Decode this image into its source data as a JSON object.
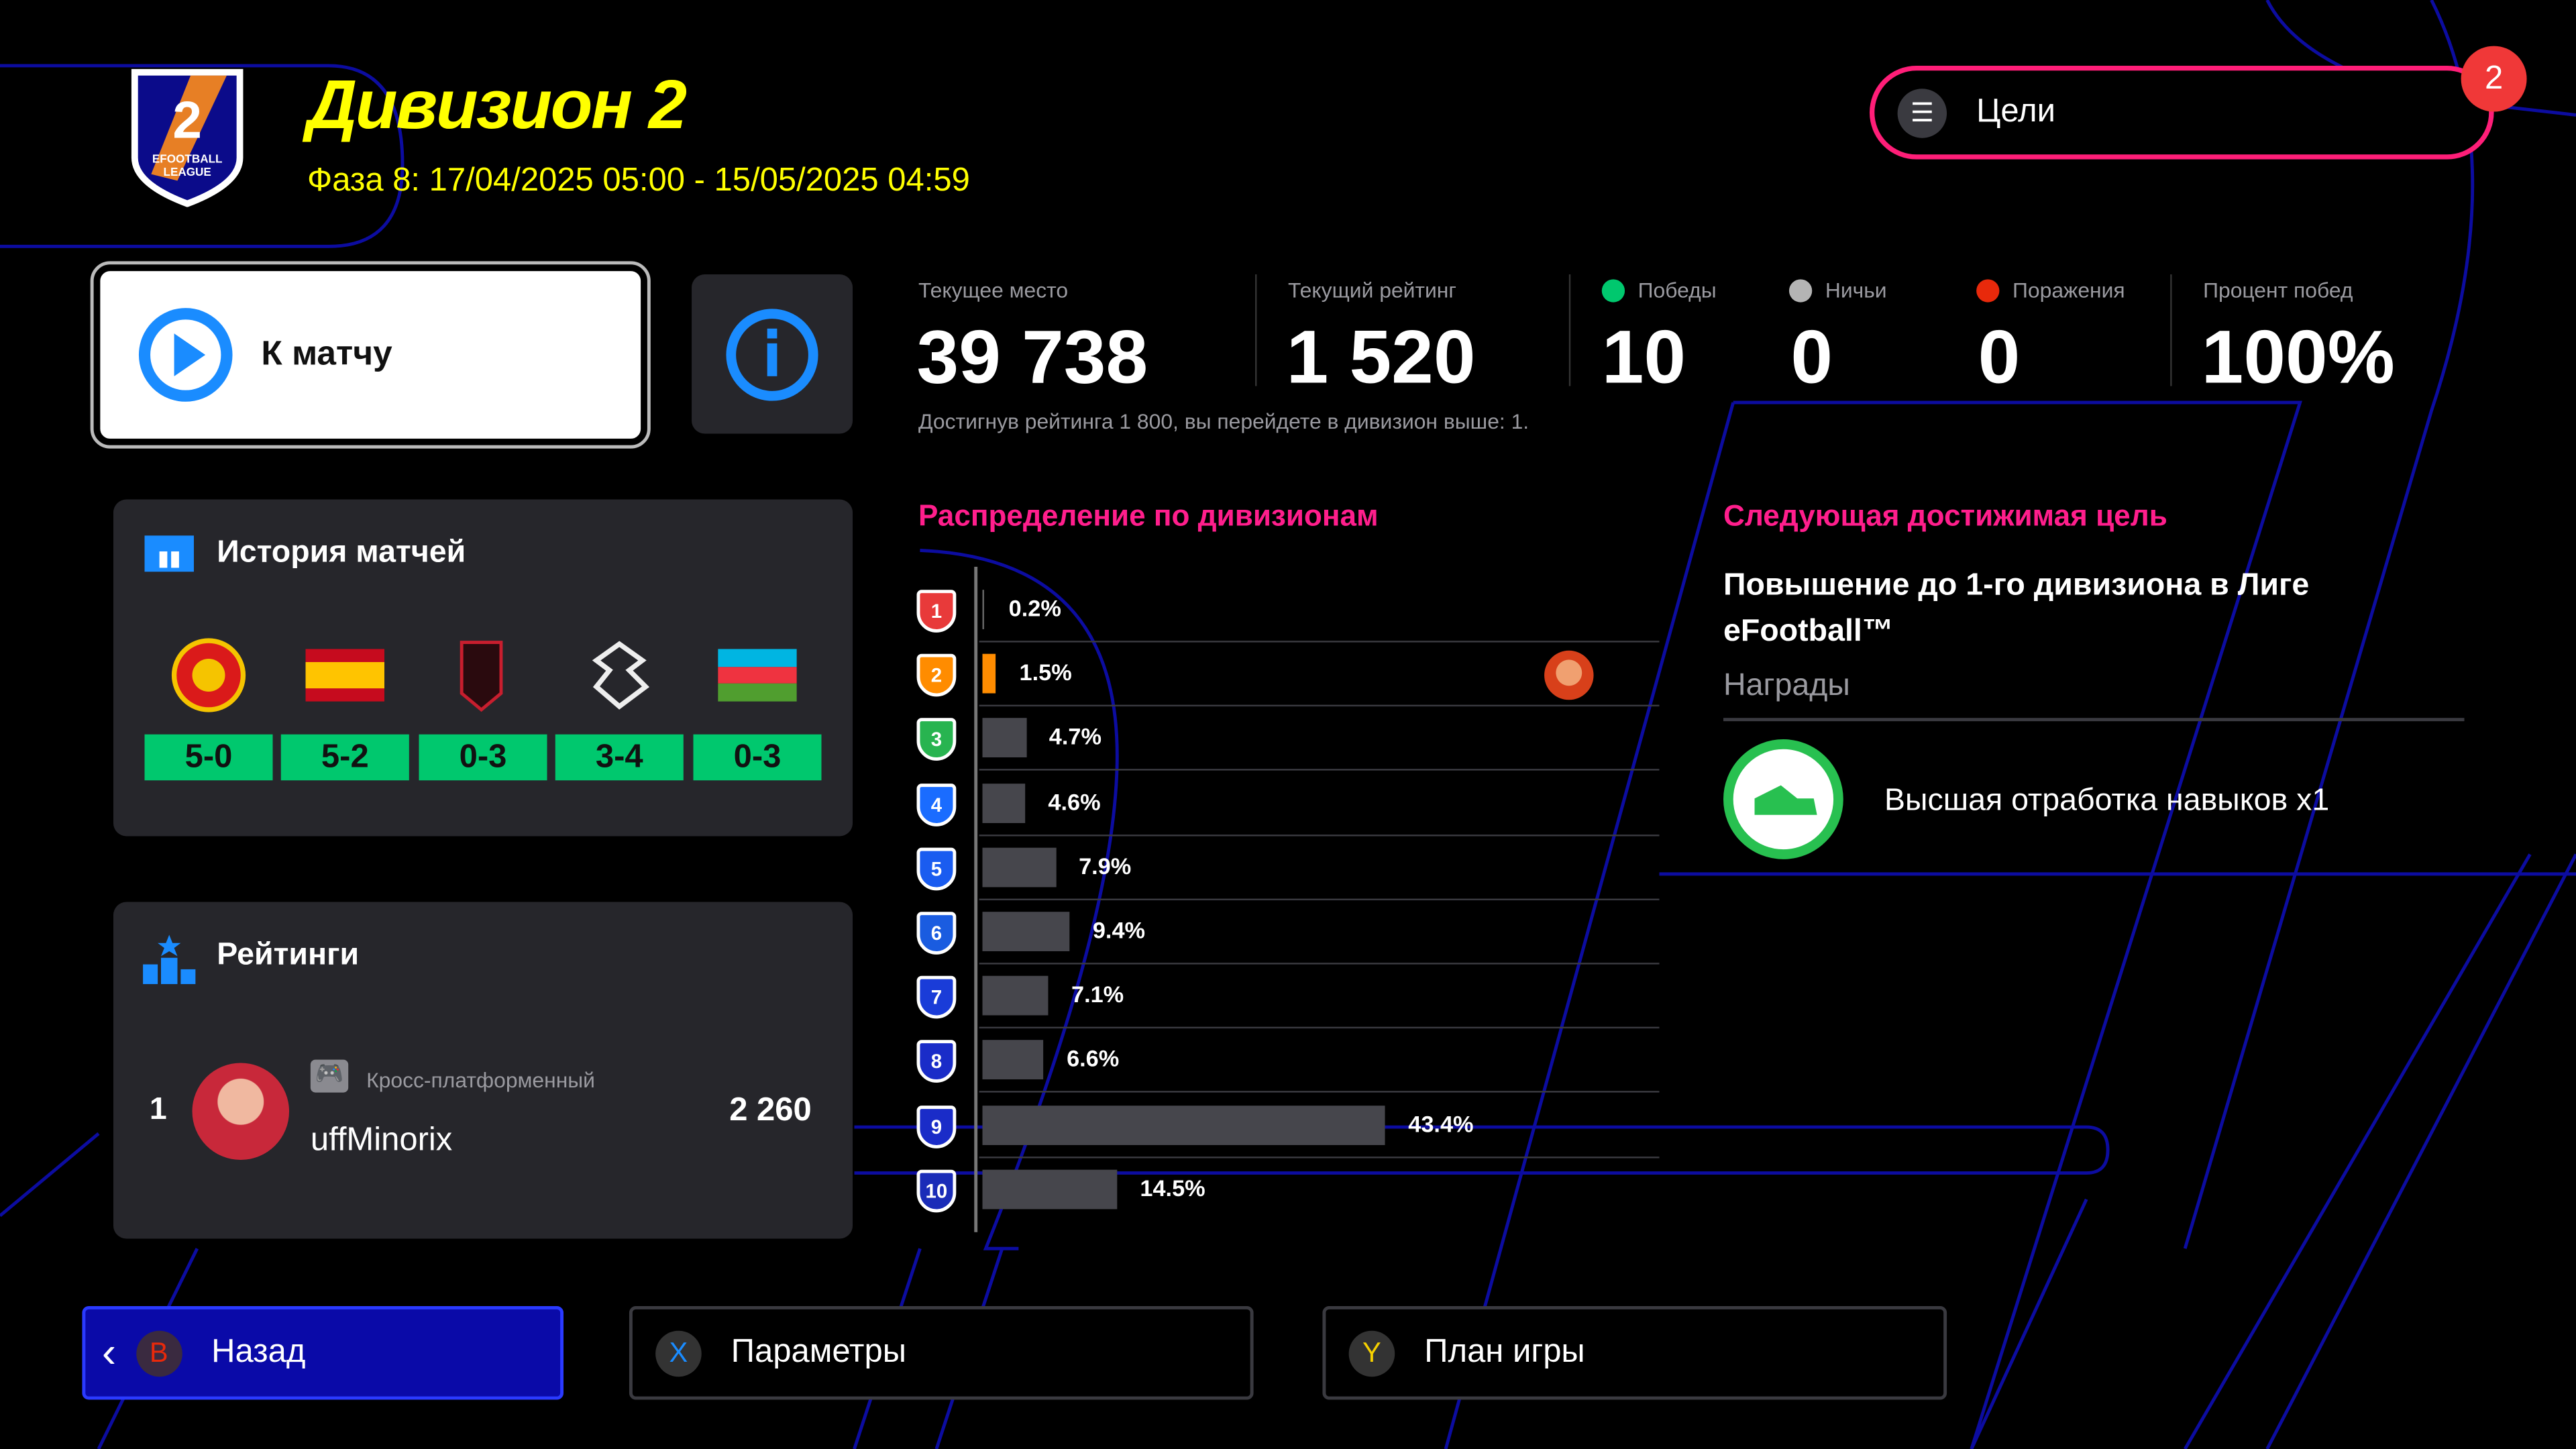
{
  "header": {
    "title": "Дивизион 2",
    "phase": "Фаза 8: 17/04/2025 05:00 - 15/05/2025 04:59",
    "logo_text": "2 EFOOTBALL LEAGUE"
  },
  "goals": {
    "label": "Цели",
    "badge": "2",
    "icon": "menu-icon"
  },
  "match_button": {
    "label": "К матчу",
    "icon": "play-icon"
  },
  "info_button": {
    "icon": "info-icon"
  },
  "stats": {
    "place": {
      "label": "Текущее место",
      "value": "39 738"
    },
    "rating": {
      "label": "Текущий рейтинг",
      "value": "1 520"
    },
    "wins": {
      "label": "Победы",
      "value": "10",
      "color": "#00c86e"
    },
    "draws": {
      "label": "Ничьи",
      "value": "0",
      "color": "#b4b4b4"
    },
    "losses": {
      "label": "Поражения",
      "value": "0",
      "color": "#e8290b"
    },
    "winrate": {
      "label": "Процент побед",
      "value": "100%"
    },
    "hint": "Достигнув рейтинга 1 800, вы перейдете в дивизион выше: 1."
  },
  "history": {
    "title": "История матчей",
    "matches": [
      {
        "opponent": "Manchester United",
        "score": "5-0"
      },
      {
        "opponent": "Spain",
        "score": "5-2"
      },
      {
        "opponent": "Club crest",
        "score": "0-3"
      },
      {
        "opponent": "Eagle crest",
        "score": "3-4"
      },
      {
        "opponent": "Azerbaijan",
        "score": "0-3"
      }
    ]
  },
  "ratings": {
    "title": "Рейтинги",
    "entry": {
      "rank": "1",
      "platform": "Кросс-платформенный",
      "name": "uffMinorix",
      "points": "2 260"
    }
  },
  "distribution": {
    "title": "Распределение по дивизионам",
    "current_division": 2,
    "rows": [
      {
        "division": "1",
        "percent": 0.2,
        "label": "0.2%",
        "color": "#e83a3a"
      },
      {
        "division": "2",
        "percent": 1.5,
        "label": "1.5%",
        "color": "#ff8c00"
      },
      {
        "division": "3",
        "percent": 4.7,
        "label": "4.7%",
        "color": "#28b450"
      },
      {
        "division": "4",
        "percent": 4.6,
        "label": "4.6%",
        "color": "#1a6cff"
      },
      {
        "division": "5",
        "percent": 7.9,
        "label": "7.9%",
        "color": "#1a5cf0"
      },
      {
        "division": "6",
        "percent": 9.4,
        "label": "9.4%",
        "color": "#1a5ce0"
      },
      {
        "division": "7",
        "percent": 7.1,
        "label": "7.1%",
        "color": "#1a3cd8"
      },
      {
        "division": "8",
        "percent": 6.6,
        "label": "6.6%",
        "color": "#1a2cc8"
      },
      {
        "division": "9",
        "percent": 43.4,
        "label": "43.4%",
        "color": "#1a2cc8"
      },
      {
        "division": "10",
        "percent": 14.5,
        "label": "14.5%",
        "color": "#1a2cb8"
      }
    ]
  },
  "next_goal": {
    "title": "Следующая достижимая цель",
    "goal": "Повышение до 1-го дивизиона в Лиге eFootball™",
    "rewards_label": "Награды",
    "reward": "Высшая отработка навыков x1"
  },
  "footer": {
    "back": {
      "key": "B",
      "label": "Назад"
    },
    "params": {
      "key": "X",
      "label": "Параметры"
    },
    "plan": {
      "key": "Y",
      "label": "План игры"
    }
  }
}
